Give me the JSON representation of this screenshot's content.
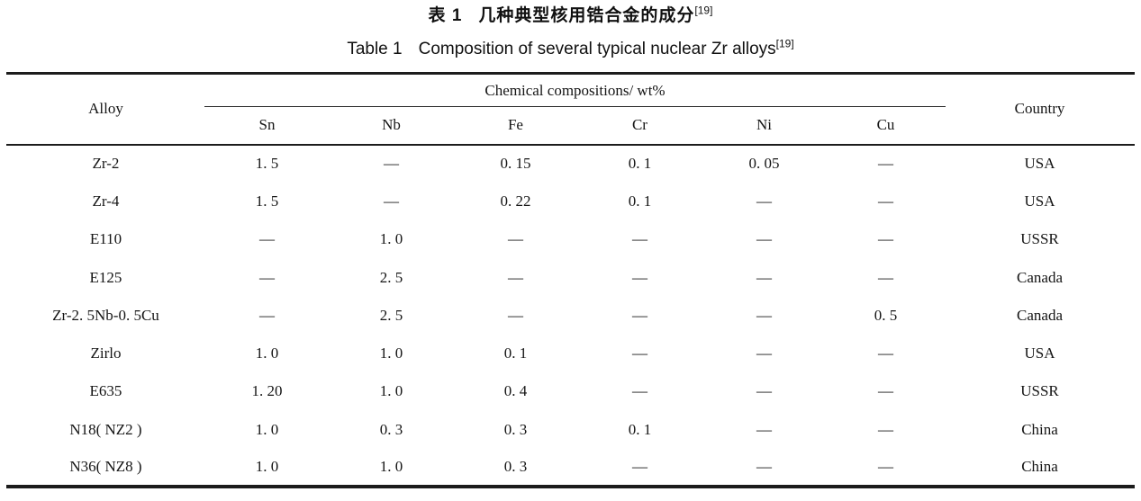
{
  "titles": {
    "zh": {
      "prefix": "表 1",
      "text": "几种典型核用锆合金的成分",
      "ref": "[19]"
    },
    "en": {
      "prefix": "Table 1",
      "text": "Composition of several typical nuclear Zr alloys",
      "ref": "[19]"
    }
  },
  "table": {
    "header": {
      "alloy": "Alloy",
      "group": "Chemical compositions/ wt%",
      "elements": [
        "Sn",
        "Nb",
        "Fe",
        "Cr",
        "Ni",
        "Cu"
      ],
      "country": "Country"
    },
    "rows": [
      {
        "alloy": "Zr-2",
        "sn": "1. 5",
        "nb": "—",
        "fe": "0. 15",
        "cr": "0. 1",
        "ni": "0. 05",
        "cu": "—",
        "country": "USA"
      },
      {
        "alloy": "Zr-4",
        "sn": "1. 5",
        "nb": "—",
        "fe": "0. 22",
        "cr": "0. 1",
        "ni": "—",
        "cu": "—",
        "country": "USA"
      },
      {
        "alloy": "E110",
        "sn": "—",
        "nb": "1. 0",
        "fe": "—",
        "cr": "—",
        "ni": "—",
        "cu": "—",
        "country": "USSR"
      },
      {
        "alloy": "E125",
        "sn": "—",
        "nb": "2. 5",
        "fe": "—",
        "cr": "—",
        "ni": "—",
        "cu": "—",
        "country": "Canada"
      },
      {
        "alloy": "Zr-2. 5Nb-0. 5Cu",
        "sn": "—",
        "nb": "2. 5",
        "fe": "—",
        "cr": "—",
        "ni": "—",
        "cu": "0. 5",
        "country": "Canada"
      },
      {
        "alloy": "Zirlo",
        "sn": "1. 0",
        "nb": "1. 0",
        "fe": "0. 1",
        "cr": "—",
        "ni": "—",
        "cu": "—",
        "country": "USA"
      },
      {
        "alloy": "E635",
        "sn": "1. 20",
        "nb": "1. 0",
        "fe": "0. 4",
        "cr": "—",
        "ni": "—",
        "cu": "—",
        "country": "USSR"
      },
      {
        "alloy": "N18( NZ2 )",
        "sn": "1. 0",
        "nb": "0. 3",
        "fe": "0. 3",
        "cr": "0. 1",
        "ni": "—",
        "cu": "—",
        "country": "China"
      },
      {
        "alloy": "N36( NZ8 )",
        "sn": "1. 0",
        "nb": "1. 0",
        "fe": "0. 3",
        "cr": "—",
        "ni": "—",
        "cu": "—",
        "country": "China"
      }
    ]
  }
}
